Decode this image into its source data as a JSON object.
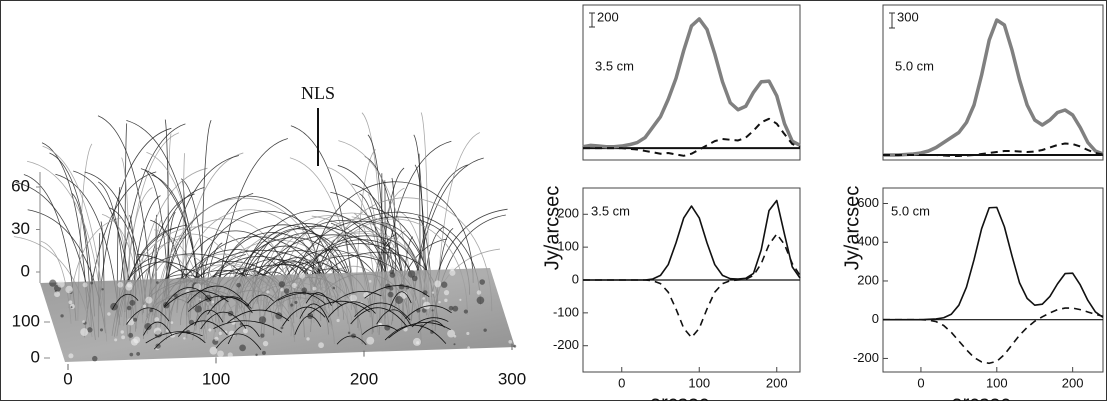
{
  "chart_data": [
    {
      "type": "fieldlines",
      "annotation": "NLS",
      "xlim": [
        0,
        300
      ],
      "xticks": [
        0,
        100,
        200,
        300
      ],
      "ylim": [
        0,
        100
      ],
      "yticks": [
        0,
        100
      ],
      "zlim": [
        0,
        60
      ],
      "zticks": [
        0,
        30,
        60
      ]
    },
    {
      "type": "line",
      "label": "3.5 cm",
      "scale_bar": 200,
      "xlim": [
        -50,
        230
      ],
      "ylim": [
        -170,
        2050
      ],
      "x": [
        -50,
        -40,
        -30,
        -20,
        -10,
        0,
        10,
        20,
        30,
        40,
        50,
        60,
        70,
        80,
        90,
        100,
        110,
        120,
        130,
        140,
        150,
        160,
        170,
        180,
        190,
        200,
        210,
        220,
        230
      ],
      "series": [
        {
          "color": "#808080",
          "linewidth": 3.5,
          "dash": false,
          "values": [
            20,
            40,
            30,
            20,
            20,
            30,
            50,
            80,
            150,
            300,
            450,
            700,
            1000,
            1400,
            1750,
            1850,
            1700,
            1350,
            950,
            650,
            550,
            600,
            800,
            950,
            960,
            750,
            350,
            100,
            40
          ]
        },
        {
          "color": "#111111",
          "linewidth": 2,
          "dash": true,
          "values": [
            0,
            0,
            0,
            0,
            0,
            0,
            -10,
            -20,
            -40,
            -60,
            -80,
            -70,
            -90,
            -110,
            -80,
            -20,
            40,
            100,
            130,
            120,
            110,
            150,
            250,
            370,
            420,
            350,
            200,
            60,
            10
          ]
        }
      ]
    },
    {
      "type": "line",
      "label": "5.0 cm",
      "scale_bar": 300,
      "xlim": [
        -50,
        240
      ],
      "ylim": [
        -100,
        3000
      ],
      "x": [
        -50,
        -40,
        -30,
        -20,
        -10,
        0,
        10,
        20,
        30,
        40,
        50,
        60,
        70,
        80,
        90,
        100,
        110,
        120,
        130,
        140,
        150,
        160,
        170,
        180,
        190,
        200,
        210,
        220,
        230,
        240
      ],
      "series": [
        {
          "color": "#808080",
          "linewidth": 3.5,
          "dash": false,
          "values": [
            0,
            0,
            0,
            10,
            20,
            40,
            80,
            150,
            250,
            350,
            450,
            650,
            1000,
            1600,
            2300,
            2700,
            2600,
            2100,
            1500,
            1000,
            700,
            600,
            700,
            850,
            900,
            800,
            550,
            250,
            80,
            20
          ]
        },
        {
          "color": "#111111",
          "linewidth": 2,
          "dash": true,
          "values": [
            0,
            0,
            0,
            0,
            0,
            0,
            0,
            0,
            -10,
            -20,
            -20,
            -10,
            0,
            20,
            40,
            60,
            80,
            80,
            70,
            60,
            70,
            100,
            150,
            200,
            230,
            220,
            170,
            100,
            40,
            10
          ]
        }
      ]
    },
    {
      "type": "line",
      "label": "3.5 cm",
      "x_label": "arcsec",
      "y_label": "Jy/arcsec",
      "xlim": [
        -50,
        230
      ],
      "xticks": [
        0,
        100,
        200
      ],
      "ylim": [
        -280,
        280
      ],
      "yticks": [
        -200,
        -100,
        0,
        100,
        200
      ],
      "x": [
        -50,
        -40,
        -30,
        -20,
        -10,
        0,
        10,
        20,
        30,
        40,
        50,
        60,
        70,
        80,
        90,
        100,
        110,
        120,
        130,
        140,
        150,
        160,
        170,
        180,
        190,
        200,
        210,
        220,
        230
      ],
      "series": [
        {
          "color": "#111111",
          "linewidth": 1.6,
          "dash": false,
          "values": [
            0,
            0,
            0,
            0,
            0,
            0,
            0,
            0,
            0,
            3,
            14,
            47,
            113,
            189,
            225,
            189,
            113,
            47,
            14,
            4,
            3,
            5,
            20,
            92,
            211,
            242,
            139,
            40,
            6
          ]
        },
        {
          "color": "#111111",
          "linewidth": 1.6,
          "dash": true,
          "values": [
            0,
            0,
            0,
            0,
            0,
            0,
            0,
            0,
            0,
            -2,
            -11,
            -37,
            -88,
            -147,
            -175,
            -147,
            -88,
            -37,
            -11,
            -2,
            0,
            2,
            14,
            50,
            108,
            140,
            108,
            50,
            14
          ]
        }
      ]
    },
    {
      "type": "line",
      "label": "5.0 cm",
      "x_label": "arcsec",
      "y_label": "Jy/arcsec",
      "xlim": [
        -50,
        240
      ],
      "xticks": [
        0,
        100,
        200
      ],
      "ylim": [
        -270,
        680
      ],
      "yticks": [
        -200,
        0,
        200,
        400,
        600
      ],
      "x": [
        -50,
        -40,
        -30,
        -20,
        -10,
        0,
        10,
        20,
        30,
        40,
        50,
        60,
        70,
        80,
        90,
        100,
        110,
        120,
        130,
        140,
        150,
        160,
        170,
        180,
        190,
        200,
        210,
        220,
        230,
        240
      ],
      "series": [
        {
          "color": "#111111",
          "linewidth": 1.6,
          "dash": false,
          "values": [
            0,
            0,
            0,
            0,
            0,
            0,
            2,
            4,
            10,
            28,
            75,
            168,
            310,
            470,
            578,
            580,
            480,
            330,
            190,
            110,
            75,
            80,
            120,
            185,
            238,
            240,
            180,
            100,
            40,
            12
          ]
        },
        {
          "color": "#111111",
          "linewidth": 1.6,
          "dash": true,
          "values": [
            0,
            0,
            0,
            0,
            0,
            0,
            -2,
            -10,
            -30,
            -65,
            -110,
            -155,
            -195,
            -218,
            -225,
            -215,
            -180,
            -130,
            -80,
            -40,
            -8,
            15,
            35,
            52,
            60,
            60,
            52,
            40,
            28,
            18
          ]
        }
      ]
    }
  ]
}
